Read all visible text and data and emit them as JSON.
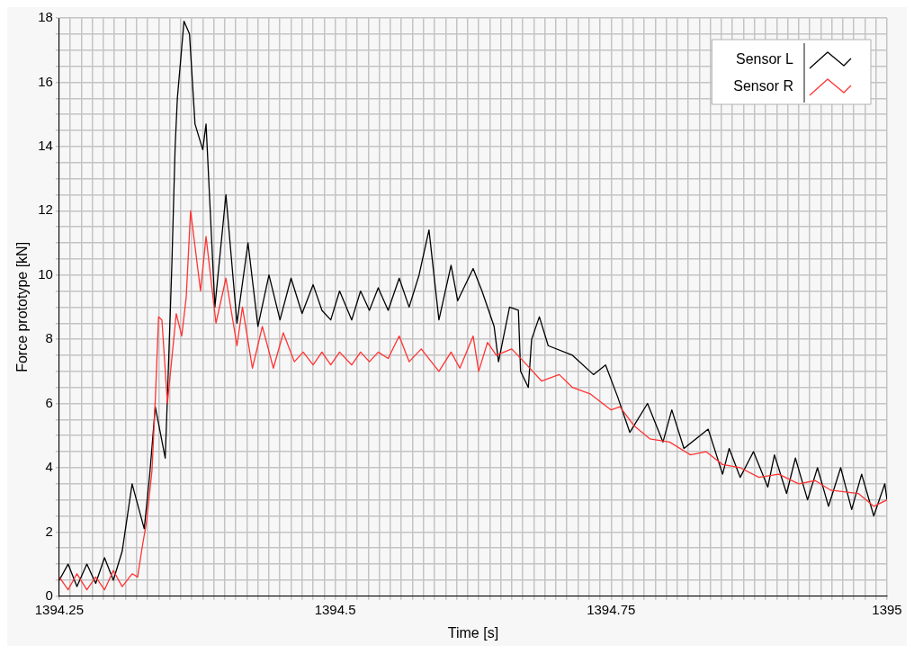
{
  "chart_data": {
    "type": "line",
    "xlabel": "Time [s]",
    "ylabel": "Force prototype [kN]",
    "xlim": [
      1394.25,
      1395
    ],
    "ylim": [
      0,
      18
    ],
    "xticks": [
      1394.25,
      {
        "value": 1394.26,
        "label": null
      },
      {
        "value": 1394.27,
        "label": null
      },
      {
        "value": 1394.28,
        "label": null
      },
      {
        "value": 1394.29,
        "label": null
      },
      {
        "value": 1394.3,
        "label": null
      },
      {
        "value": 1394.31,
        "label": null
      },
      {
        "value": 1394.32,
        "label": null
      },
      {
        "value": 1394.33,
        "label": null
      },
      {
        "value": 1394.34,
        "label": null
      },
      {
        "value": 1394.35,
        "label": null
      },
      {
        "value": 1394.36,
        "label": null
      },
      {
        "value": 1394.37,
        "label": null
      },
      {
        "value": 1394.38,
        "label": null
      },
      {
        "value": 1394.39,
        "label": null
      },
      {
        "value": 1394.4,
        "label": null
      },
      {
        "value": 1394.41,
        "label": null
      },
      {
        "value": 1394.42,
        "label": null
      },
      {
        "value": 1394.43,
        "label": null
      },
      {
        "value": 1394.44,
        "label": null
      },
      {
        "value": 1394.45,
        "label": null
      },
      {
        "value": 1394.46,
        "label": null
      },
      {
        "value": 1394.47,
        "label": null
      },
      {
        "value": 1394.48,
        "label": null
      },
      {
        "value": 1394.49,
        "label": null
      },
      1394.5,
      {
        "value": 1394.51,
        "label": null
      },
      {
        "value": 1394.52,
        "label": null
      },
      {
        "value": 1394.53,
        "label": null
      },
      {
        "value": 1394.54,
        "label": null
      },
      {
        "value": 1394.55,
        "label": null
      },
      {
        "value": 1394.56,
        "label": null
      },
      {
        "value": 1394.57,
        "label": null
      },
      {
        "value": 1394.58,
        "label": null
      },
      {
        "value": 1394.59,
        "label": null
      },
      {
        "value": 1394.6,
        "label": null
      },
      {
        "value": 1394.61,
        "label": null
      },
      {
        "value": 1394.62,
        "label": null
      },
      {
        "value": 1394.63,
        "label": null
      },
      {
        "value": 1394.64,
        "label": null
      },
      {
        "value": 1394.65,
        "label": null
      },
      {
        "value": 1394.66,
        "label": null
      },
      {
        "value": 1394.67,
        "label": null
      },
      {
        "value": 1394.68,
        "label": null
      },
      {
        "value": 1394.69,
        "label": null
      },
      {
        "value": 1394.7,
        "label": null
      },
      {
        "value": 1394.71,
        "label": null
      },
      {
        "value": 1394.72,
        "label": null
      },
      {
        "value": 1394.73,
        "label": null
      },
      {
        "value": 1394.74,
        "label": null
      },
      1394.75,
      {
        "value": 1394.76,
        "label": null
      },
      {
        "value": 1394.77,
        "label": null
      },
      {
        "value": 1394.78,
        "label": null
      },
      {
        "value": 1394.79,
        "label": null
      },
      {
        "value": 1394.8,
        "label": null
      },
      {
        "value": 1394.81,
        "label": null
      },
      {
        "value": 1394.82,
        "label": null
      },
      {
        "value": 1394.83,
        "label": null
      },
      {
        "value": 1394.84,
        "label": null
      },
      {
        "value": 1394.85,
        "label": null
      },
      {
        "value": 1394.86,
        "label": null
      },
      {
        "value": 1394.87,
        "label": null
      },
      {
        "value": 1394.88,
        "label": null
      },
      {
        "value": 1394.89,
        "label": null
      },
      {
        "value": 1394.9,
        "label": null
      },
      {
        "value": 1394.91,
        "label": null
      },
      {
        "value": 1394.92,
        "label": null
      },
      {
        "value": 1394.93,
        "label": null
      },
      {
        "value": 1394.94,
        "label": null
      },
      {
        "value": 1394.95,
        "label": null
      },
      {
        "value": 1394.96,
        "label": null
      },
      {
        "value": 1394.97,
        "label": null
      },
      {
        "value": 1394.98,
        "label": null
      },
      {
        "value": 1394.99,
        "label": null
      },
      1395
    ],
    "yticks": [
      0,
      {
        "value": 0.5,
        "label": null
      },
      {
        "value": 1,
        "label": null
      },
      {
        "value": 1.5,
        "label": null
      },
      2,
      {
        "value": 2.5,
        "label": null
      },
      {
        "value": 3,
        "label": null
      },
      {
        "value": 3.5,
        "label": null
      },
      4,
      {
        "value": 4.5,
        "label": null
      },
      {
        "value": 5,
        "label": null
      },
      {
        "value": 5.5,
        "label": null
      },
      6,
      {
        "value": 6.5,
        "label": null
      },
      {
        "value": 7,
        "label": null
      },
      {
        "value": 7.5,
        "label": null
      },
      8,
      {
        "value": 8.5,
        "label": null
      },
      {
        "value": 9,
        "label": null
      },
      {
        "value": 9.5,
        "label": null
      },
      10,
      {
        "value": 10.5,
        "label": null
      },
      {
        "value": 11,
        "label": null
      },
      {
        "value": 11.5,
        "label": null
      },
      12,
      {
        "value": 12.5,
        "label": null
      },
      {
        "value": 13,
        "label": null
      },
      {
        "value": 13.5,
        "label": null
      },
      14,
      {
        "value": 14.5,
        "label": null
      },
      {
        "value": 15,
        "label": null
      },
      {
        "value": 15.5,
        "label": null
      },
      16,
      {
        "value": 16.5,
        "label": null
      },
      {
        "value": 17,
        "label": null
      },
      {
        "value": 17.5,
        "label": null
      },
      18
    ],
    "grid": true,
    "legend": "top right",
    "marker": "none",
    "line_style": "solid",
    "series": [
      {
        "name": "Sensor L",
        "color": "#000000",
        "x": [
          1394.25,
          1394.258,
          1394.266,
          1394.275,
          1394.283,
          1394.291,
          1394.299,
          1394.307,
          1394.316,
          1394.327,
          1394.332,
          1394.337,
          1394.346,
          1394.348,
          1394.352,
          1394.355,
          1394.357,
          1394.363,
          1394.368,
          1394.373,
          1394.38,
          1394.383,
          1394.391,
          1394.401,
          1394.411,
          1394.421,
          1394.43,
          1394.44,
          1394.45,
          1394.46,
          1394.47,
          1394.48,
          1394.488,
          1394.496,
          1394.504,
          1394.515,
          1394.523,
          1394.531,
          1394.539,
          1394.548,
          1394.558,
          1394.567,
          1394.576,
          1394.585,
          1394.594,
          1394.605,
          1394.611,
          1394.625,
          1394.633,
          1394.644,
          1394.648,
          1394.658,
          1394.666,
          1394.668,
          1394.675,
          1394.678,
          1394.685,
          1394.693,
          1394.715,
          1394.734,
          1394.745,
          1394.756,
          1394.767,
          1394.783,
          1394.797,
          1394.805,
          1394.816,
          1394.838,
          1394.851,
          1394.857,
          1394.867,
          1394.879,
          1394.892,
          1394.898,
          1394.909,
          1394.917,
          1394.928,
          1394.937,
          1394.947,
          1394.958,
          1394.968,
          1394.977,
          1394.988,
          1394.998,
          1395
        ],
        "values": [
          0.5,
          1.0,
          0.3,
          1.0,
          0.4,
          1.2,
          0.5,
          1.4,
          3.5,
          2.1,
          3.8,
          5.9,
          4.3,
          6.2,
          10.3,
          14.0,
          15.5,
          17.9,
          17.5,
          14.7,
          13.9,
          14.7,
          9.0,
          12.5,
          8.5,
          11.0,
          8.4,
          10.0,
          8.6,
          9.9,
          8.8,
          9.7,
          8.9,
          8.6,
          9.5,
          8.6,
          9.5,
          8.9,
          9.6,
          8.9,
          9.9,
          9.0,
          10.0,
          11.4,
          8.6,
          10.3,
          9.2,
          10.2,
          9.5,
          8.4,
          7.3,
          9.0,
          8.9,
          7.0,
          6.5,
          8.0,
          8.7,
          7.8,
          7.5,
          6.9,
          7.2,
          6.2,
          5.1,
          6.0,
          4.8,
          5.8,
          4.6,
          5.2,
          3.8,
          4.6,
          3.7,
          4.5,
          3.4,
          4.4,
          3.2,
          4.3,
          3.0,
          4.0,
          2.8,
          4.0,
          2.7,
          3.8,
          2.5,
          3.5,
          3.0
        ]
      },
      {
        "name": "Sensor R",
        "color": "#ff3333",
        "x": [
          1394.25,
          1394.258,
          1394.266,
          1394.275,
          1394.283,
          1394.291,
          1394.299,
          1394.307,
          1394.316,
          1394.321,
          1394.325,
          1394.329,
          1394.334,
          1394.337,
          1394.34,
          1394.343,
          1394.348,
          1394.356,
          1394.361,
          1394.365,
          1394.369,
          1394.378,
          1394.383,
          1394.392,
          1394.401,
          1394.411,
          1394.416,
          1394.425,
          1394.434,
          1394.444,
          1394.453,
          1394.463,
          1394.471,
          1394.48,
          1394.488,
          1394.496,
          1394.504,
          1394.515,
          1394.523,
          1394.531,
          1394.539,
          1394.548,
          1394.558,
          1394.567,
          1394.578,
          1394.594,
          1394.605,
          1394.613,
          1394.625,
          1394.63,
          1394.638,
          1394.646,
          1394.66,
          1394.671,
          1394.687,
          1394.703,
          1394.715,
          1394.731,
          1394.75,
          1394.758,
          1394.771,
          1394.785,
          1394.803,
          1394.822,
          1394.836,
          1394.851,
          1394.867,
          1394.884,
          1394.902,
          1394.92,
          1394.935,
          1394.949,
          1394.974,
          1394.988,
          1395
        ],
        "values": [
          0.6,
          0.2,
          0.7,
          0.2,
          0.6,
          0.2,
          0.8,
          0.3,
          0.7,
          0.6,
          1.5,
          2.3,
          3.9,
          6.1,
          8.7,
          8.6,
          6.0,
          8.8,
          8.1,
          9.3,
          12.0,
          9.5,
          11.2,
          8.5,
          9.9,
          7.8,
          9.0,
          7.1,
          8.4,
          7.1,
          8.2,
          7.3,
          7.6,
          7.2,
          7.6,
          7.2,
          7.6,
          7.2,
          7.6,
          7.3,
          7.6,
          7.4,
          8.1,
          7.3,
          7.7,
          7.0,
          7.6,
          7.1,
          8.1,
          7.0,
          7.9,
          7.5,
          7.7,
          7.3,
          6.7,
          6.9,
          6.5,
          6.3,
          5.8,
          5.9,
          5.3,
          4.9,
          4.8,
          4.4,
          4.5,
          4.1,
          4.0,
          3.7,
          3.8,
          3.5,
          3.6,
          3.3,
          3.2,
          2.8,
          3.0
        ]
      }
    ]
  }
}
